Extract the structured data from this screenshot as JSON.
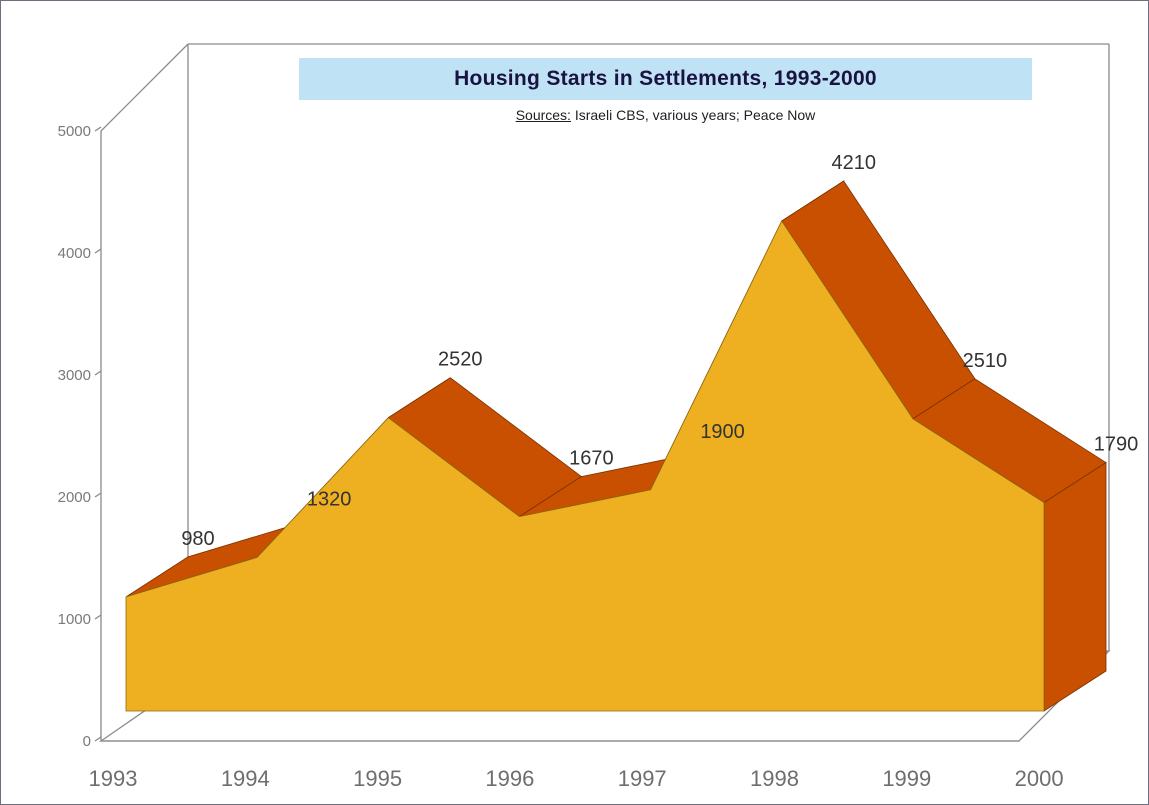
{
  "chart_data": {
    "type": "area",
    "title": "Housing Starts in Settlements, 1993-2000",
    "source": {
      "label": "Sources:",
      "text": " Israeli CBS, various years; Peace Now"
    },
    "categories": [
      "1993",
      "1994",
      "1995",
      "1996",
      "1997",
      "1998",
      "1999",
      "2000"
    ],
    "series": [
      {
        "values": [
          980,
          1320,
          2520,
          1670,
          1900,
          4210,
          2510,
          1790
        ]
      }
    ],
    "data_labels": [
      "",
      "980",
      "1320",
      "2520",
      "1670",
      "1900",
      "4210",
      "2510",
      "1790"
    ],
    "y_ticks": [
      "0",
      "1000",
      "2000",
      "3000",
      "4000",
      "5000"
    ],
    "ylim": [
      0,
      5000
    ],
    "style": "3d",
    "colors": {
      "front_face": "#eeb020",
      "top_face": "#c85000",
      "side_face": "#c85000",
      "title_bg": "#bfe3f5",
      "axis": "#8a8a8a",
      "frame": "#6e6e7e"
    }
  }
}
